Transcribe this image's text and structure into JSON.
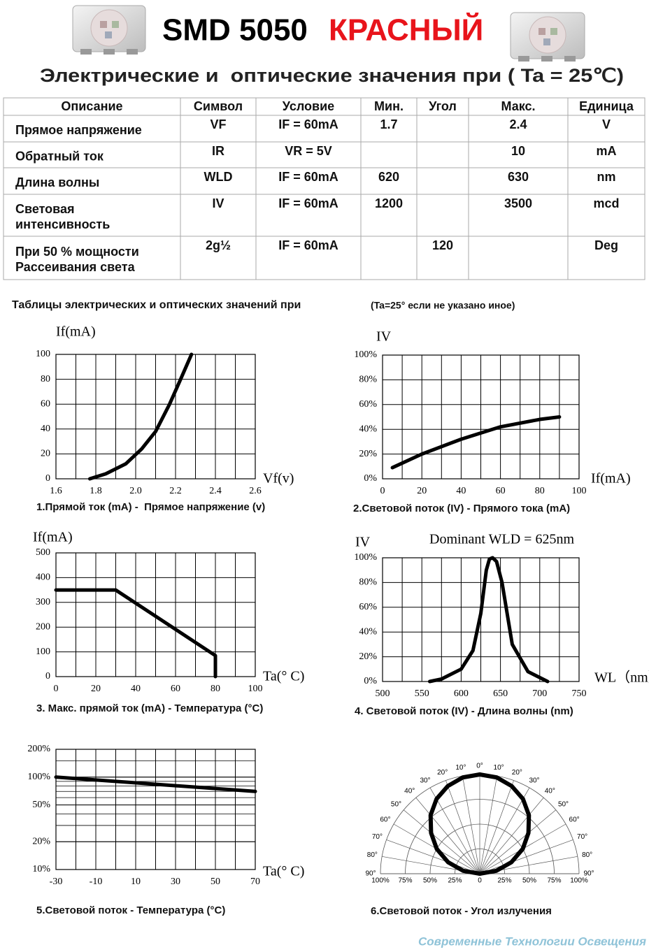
{
  "header": {
    "title": "SMD 5050",
    "title_red": "КРАСНЫЙ",
    "subtitle": "Электрические и  оптические значения при ( Ta = 25℃)"
  },
  "table": {
    "columns": [
      "Описание",
      "Символ",
      "Условие",
      "Мин.",
      "Угол",
      "Макс.",
      "Единица"
    ],
    "rows": [
      [
        "Прямое напряжение",
        "VF",
        "IF = 60mA",
        "1.7",
        null,
        "2.4",
        "V"
      ],
      [
        "Обратный ток",
        "IR",
        "VR = 5V",
        null,
        null,
        "10",
        "mA"
      ],
      [
        "Длина волны",
        "WLD",
        "IF = 60mA",
        "620",
        null,
        "630",
        "nm"
      ],
      [
        "Световая\nинтенсивность",
        "IV",
        "IF = 60mA",
        "1200",
        null,
        "3500",
        "mcd"
      ],
      [
        "При 50 % мощности\nРассеивания света",
        "2g½",
        "IF = 60mA",
        null,
        "120",
        null,
        "Deg"
      ]
    ]
  },
  "section_title": "Таблицы электрических и оптических значений при",
  "section_note": "(Ta=25° если не указано иное)",
  "chart_data": [
    {
      "type": "line",
      "title": "1.Прямой ток (mA) -  Прямое напряжение (v)",
      "ylabel": "If(mA)",
      "xlabel": "Vf(v)",
      "xlim": [
        1.6,
        2.6
      ],
      "xticks": [
        1.6,
        1.8,
        {
          "value": 2,
          "label": "2.0"
        },
        2.2,
        2.4,
        2.6
      ],
      "ylim": [
        0,
        100
      ],
      "yticks": [
        0,
        20,
        40,
        60,
        80,
        100
      ],
      "grid": true,
      "color": "#000000",
      "x": [
        1.77,
        1.85,
        1.95,
        2.03,
        2.1,
        2.17,
        2.22,
        2.28
      ],
      "values": [
        0,
        4,
        12,
        24,
        38,
        60,
        78,
        100
      ]
    },
    {
      "type": "line",
      "title": "2.Световой поток (IV) - Прямого тока (mA)",
      "ylabel": "IV",
      "xlabel": "If(mA)",
      "xlim": [
        0,
        100
      ],
      "xticks": [
        0,
        20,
        40,
        60,
        80,
        100
      ],
      "ylim": [
        0,
        100
      ],
      "yticks": [
        {
          "value": 0,
          "label": "0%"
        },
        {
          "value": 20,
          "label": "20%"
        },
        {
          "value": 40,
          "label": "40%"
        },
        {
          "value": 60,
          "label": "60%"
        },
        {
          "value": 80,
          "label": "80%"
        },
        {
          "value": 100,
          "label": "100%"
        }
      ],
      "grid": true,
      "color": "#000000",
      "x": [
        5,
        20,
        40,
        60,
        80,
        90
      ],
      "values": [
        9,
        20,
        32,
        42,
        48,
        50
      ]
    },
    {
      "type": "line",
      "title": "3. Макс. прямой ток (mA) - Температура (°C)",
      "ylabel": "If(mA)",
      "xlabel": "Ta(° C)",
      "xlim": [
        0,
        100
      ],
      "xticks": [
        0,
        20,
        40,
        60,
        80,
        100
      ],
      "ylim": [
        0,
        500
      ],
      "yticks": [
        0,
        100,
        200,
        300,
        400,
        500
      ],
      "grid": true,
      "color": "#000000",
      "x": [
        0,
        30,
        80,
        80
      ],
      "values": [
        350,
        350,
        85,
        0
      ]
    },
    {
      "type": "line",
      "title": "4. Световой поток (IV) - Длина волны (nm)",
      "ylabel": "IV",
      "xlabel": "WL（nm）",
      "annotation": "Dominant WLD = 625nm",
      "xlim": [
        500,
        750
      ],
      "xticks": [
        500,
        550,
        600,
        650,
        700,
        750
      ],
      "ylim": [
        0,
        100
      ],
      "yticks": [
        {
          "value": 0,
          "label": "0%"
        },
        {
          "value": 20,
          "label": "20%"
        },
        {
          "value": 40,
          "label": "40%"
        },
        {
          "value": 60,
          "label": "60%"
        },
        {
          "value": 80,
          "label": "80%"
        },
        {
          "value": 100,
          "label": "100%"
        }
      ],
      "grid": true,
      "color": "#000000",
      "x": [
        560,
        575,
        600,
        615,
        625,
        632,
        636,
        640,
        645,
        652,
        665,
        685,
        710
      ],
      "values": [
        0,
        2,
        10,
        25,
        55,
        90,
        99,
        100,
        97,
        80,
        30,
        8,
        0
      ]
    },
    {
      "type": "line",
      "title": "5.Световой поток - Температура (°C)",
      "xlabel": "Ta(° C)",
      "log_y": true,
      "xlim": [
        -30,
        70
      ],
      "xticks": [
        -30,
        -10,
        10,
        30,
        50,
        70
      ],
      "ylim": [
        10,
        200
      ],
      "yticks": [
        {
          "value": 10,
          "label": "10%"
        },
        {
          "value": 20,
          "label": "20%"
        },
        {
          "value": 50,
          "label": "50%"
        },
        {
          "value": 100,
          "label": "100%"
        },
        {
          "value": 200,
          "label": "200%"
        }
      ],
      "grid": true,
      "color": "#000000",
      "x": [
        -30,
        70
      ],
      "values": [
        100,
        70
      ]
    },
    {
      "type": "polar",
      "title": "6.Световой поток - Угол излучения",
      "color": "#000000",
      "angle_ticks": [
        {
          "value": 0,
          "label": "0°"
        },
        {
          "value": 10,
          "label": "10°"
        },
        {
          "value": 20,
          "label": "20°"
        },
        {
          "value": 30,
          "label": "30°"
        },
        {
          "value": 40,
          "label": "40°"
        },
        {
          "value": 50,
          "label": "50°"
        },
        {
          "value": 60,
          "label": "60°"
        },
        {
          "value": 70,
          "label": "70°"
        },
        {
          "value": 80,
          "label": "80°"
        },
        {
          "value": 90,
          "label": "90°"
        }
      ],
      "rticks": [
        0,
        {
          "value": 25,
          "label": "25%"
        },
        {
          "value": 50,
          "label": "50%"
        },
        {
          "value": 75,
          "label": "75%"
        },
        {
          "value": 100,
          "label": "100%"
        }
      ],
      "theta": [
        0,
        10,
        20,
        30,
        40,
        50,
        60,
        70,
        80,
        90
      ],
      "values": [
        100,
        98.5,
        94,
        87,
        77,
        64,
        50,
        34,
        17,
        0
      ]
    }
  ],
  "footer": "Современные Технологии Освещения"
}
